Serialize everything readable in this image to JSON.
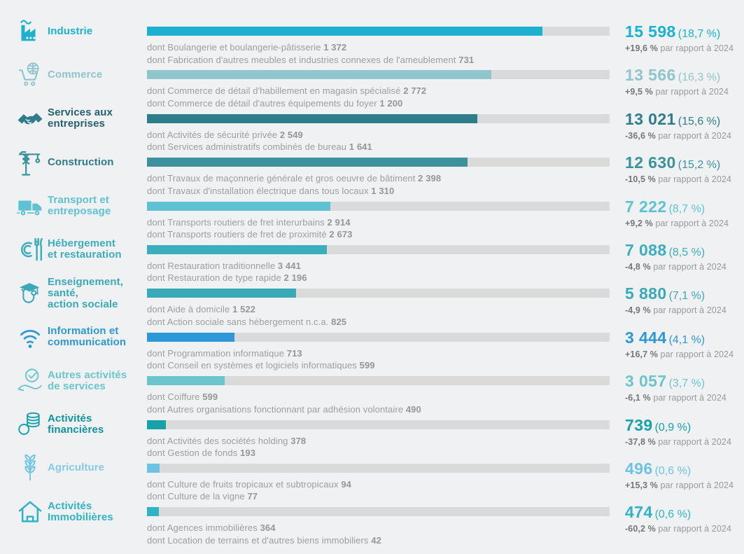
{
  "chart_data": {
    "type": "bar",
    "title": "",
    "orientation": "horizontal",
    "comparison_base": "par rapport à 2024",
    "bar_track_total": 18243,
    "categories": [
      "Industrie",
      "Commerce",
      "Services aux entreprises",
      "Construction",
      "Transport et entreposage",
      "Hébergement et restauration",
      "Enseignement, santé, action sociale",
      "Information et communication",
      "Autres activités de services",
      "Activités financières",
      "Agriculture",
      "Activités Immobilières"
    ],
    "values": [
      15598,
      13566,
      13021,
      12630,
      7222,
      7088,
      5880,
      3444,
      3057,
      739,
      496,
      474
    ],
    "share_pct": [
      18.7,
      16.3,
      15.6,
      15.2,
      8.7,
      8.5,
      7.1,
      4.1,
      3.7,
      0.9,
      0.6,
      0.6
    ],
    "change_pct_vs_2024": [
      19.6,
      9.5,
      -36.6,
      -10.5,
      9.2,
      -4.8,
      -4.9,
      16.7,
      -6.1,
      -37.8,
      15.3,
      -60.2
    ],
    "sub_items": [
      [
        {
          "label": "Boulangerie et boulangerie-pâtisserie",
          "value": 1372
        },
        {
          "label": "Fabrication d'autres meubles et industries connexes de l'ameublement",
          "value": 731
        }
      ],
      [
        {
          "label": "Commerce de détail d'habillement en magasin spécialisé",
          "value": 2772
        },
        {
          "label": "Commerce de détail d'autres équipements du foyer",
          "value": 1200
        }
      ],
      [
        {
          "label": "Activités de sécurité privée",
          "value": 2549
        },
        {
          "label": "Services administratifs combinés de bureau",
          "value": 1641
        }
      ],
      [
        {
          "label": "Travaux de maçonnerie générale et gros oeuvre de bâtiment",
          "value": 2398
        },
        {
          "label": "Travaux d'installation électrique dans tous locaux",
          "value": 1310
        }
      ],
      [
        {
          "label": "Transports routiers de fret interurbains",
          "value": 2914
        },
        {
          "label": "Transports routiers de fret de proximité",
          "value": 2673
        }
      ],
      [
        {
          "label": "Restauration traditionnelle",
          "value": 3441
        },
        {
          "label": "Restauration de type rapide",
          "value": 2196
        }
      ],
      [
        {
          "label": "Aide à domicile",
          "value": 1522
        },
        {
          "label": "Action sociale sans hébergement n.c.a.",
          "value": 825
        }
      ],
      [
        {
          "label": "Programmation informatique",
          "value": 713
        },
        {
          "label": "Conseil en systèmes et logiciels informatiques",
          "value": 599
        }
      ],
      [
        {
          "label": "Coiffure",
          "value": 599
        },
        {
          "label": "Autres organisations fonctionnant par adhésion volontaire",
          "value": 490
        }
      ],
      [
        {
          "label": "Activités des sociétés holding",
          "value": 378
        },
        {
          "label": "Gestion de fonds",
          "value": 193
        }
      ],
      [
        {
          "label": "Culture de fruits tropicaux et subtropicaux",
          "value": 94
        },
        {
          "label": "Culture de la vigne",
          "value": 77
        }
      ],
      [
        {
          "label": "Agences immobilières",
          "value": 364
        },
        {
          "label": "Location de terrains et d'autres biens immobiliers",
          "value": 42
        }
      ]
    ]
  },
  "colors": {
    "background": "#f0f1f2",
    "track": "#d9dad9",
    "change_bold": "#75767a",
    "change_text": "#97999c",
    "detail_text": "#9b9da0"
  },
  "rows": [
    {
      "label": "Industrie",
      "icon": "factory-icon",
      "color": "#1bb1cf",
      "label_color": "#1bb1cf",
      "value": "15 598",
      "value_num": 15598,
      "share": "(18,7 %)",
      "change": "+19,6 %",
      "change_suffix": "par rapport à 2024",
      "details": [
        {
          "text": "dont Boulangerie et boulangerie-pâtisserie",
          "value": "1 372"
        },
        {
          "text": "dont Fabrication d'autres meubles et industries connexes de l'ameublement",
          "value": "731"
        }
      ]
    },
    {
      "label": "Commerce",
      "icon": "shopping-cart-globe-icon",
      "color": "#8fc5cc",
      "label_color": "#8fc5cc",
      "value": "13 566",
      "value_num": 13566,
      "share": "(16,3 %)",
      "change": "+9,5 %",
      "change_suffix": "par rapport à 2024",
      "details": [
        {
          "text": "dont Commerce de détail d'habillement en magasin spécialisé",
          "value": "2 772"
        },
        {
          "text": "dont Commerce de détail d'autres équipements du foyer",
          "value": "1 200"
        }
      ]
    },
    {
      "label": "Services aux\nentreprises",
      "icon": "handshake-icon",
      "color": "#2e7d8b",
      "label_color": "#24616f",
      "value": "13 021",
      "value_num": 13021,
      "share": "(15,6 %)",
      "change": "-36,6 %",
      "change_suffix": "par rapport à 2024",
      "details": [
        {
          "text": "dont Activités de sécurité privée",
          "value": "2 549"
        },
        {
          "text": "dont Services administratifs combinés de bureau",
          "value": "1 641"
        }
      ]
    },
    {
      "label": "Construction",
      "icon": "crane-icon",
      "color": "#3b929c",
      "label_color": "#2e7b8a",
      "value": "12 630",
      "value_num": 12630,
      "share": "(15,2 %)",
      "change": "-10,5 %",
      "change_suffix": "par rapport à 2024",
      "details": [
        {
          "text": "dont Travaux de maçonnerie générale et gros oeuvre de bâtiment",
          "value": "2 398"
        },
        {
          "text": "dont Travaux d'installation électrique dans tous locaux",
          "value": "1 310"
        }
      ]
    },
    {
      "label": "Transport et\nentreposage",
      "icon": "truck-icon",
      "color": "#5fc2d3",
      "label_color": "#5fc2d3",
      "value": "7 222",
      "value_num": 7222,
      "share": "(8,7 %)",
      "change": "+9,2 %",
      "change_suffix": "par rapport à 2024",
      "details": [
        {
          "text": "dont Transports routiers de fret interurbains",
          "value": "2 914"
        },
        {
          "text": "dont Transports routiers de fret de proximité",
          "value": "2 673"
        }
      ]
    },
    {
      "label": "Hébergement\net restauration",
      "icon": "restaurant-icon",
      "color": "#3cadbc",
      "label_color": "#3cadbc",
      "value": "7 088",
      "value_num": 7088,
      "share": "(8,5 %)",
      "change": "-4,8 %",
      "change_suffix": "par rapport à 2024",
      "details": [
        {
          "text": "dont Restauration traditionnelle",
          "value": "3 441"
        },
        {
          "text": "dont Restauration de type rapide",
          "value": "2 196"
        }
      ]
    },
    {
      "label": "Enseignement,\nsanté,\naction sociale",
      "icon": "education-health-icon",
      "color": "#3aa9b8",
      "label_color": "#3aa9b8",
      "value": "5 880",
      "value_num": 5880,
      "share": "(7,1 %)",
      "change": "-4,9 %",
      "change_suffix": "par rapport à 2024",
      "details": [
        {
          "text": "dont Aide à domicile",
          "value": "1 522"
        },
        {
          "text": "dont Action sociale sans hébergement n.c.a.",
          "value": "825"
        }
      ]
    },
    {
      "label": "Information et\ncommunication",
      "icon": "wifi-icon",
      "color": "#2d97d7",
      "label_color": "#2d97d7",
      "value": "3 444",
      "value_num": 3444,
      "share": "(4,1 %)",
      "change": "+16,7 %",
      "change_suffix": "par rapport à 2024",
      "details": [
        {
          "text": "dont Programmation informatique",
          "value": "713"
        },
        {
          "text": "dont Conseil en systèmes et logiciels informatiques",
          "value": "599"
        }
      ]
    },
    {
      "label": "Autres activités\nde services",
      "icon": "hand-check-icon",
      "color": "#6bc6cc",
      "label_color": "#6bc6cc",
      "value": "3 057",
      "value_num": 3057,
      "share": "(3,7 %)",
      "change": "-6,1 %",
      "change_suffix": "par rapport à 2024",
      "details": [
        {
          "text": "dont Coiffure",
          "value": "599"
        },
        {
          "text": "dont Autres organisations fonctionnant par adhésion volontaire",
          "value": "490"
        }
      ]
    },
    {
      "label": "Activités\nfinancières",
      "icon": "coins-icon",
      "color": "#16a2a8",
      "label_color": "#0f939c",
      "value": "739",
      "value_num": 739,
      "share": "(0,9 %)",
      "change": "-37,8 %",
      "change_suffix": "par rapport à 2024",
      "details": [
        {
          "text": "dont Activités des sociétés holding",
          "value": "378"
        },
        {
          "text": "dont Gestion de fonds",
          "value": "193"
        }
      ]
    },
    {
      "label": "Agriculture",
      "icon": "wheat-icon",
      "color": "#6dc3e3",
      "label_color": "#85c9e6",
      "value": "496",
      "value_num": 496,
      "share": "(0,6 %)",
      "change": "+15,3 %",
      "change_suffix": "par rapport à 2024",
      "details": [
        {
          "text": "dont Culture de fruits tropicaux et subtropicaux",
          "value": "94"
        },
        {
          "text": "dont Culture de la vigne",
          "value": "77"
        }
      ]
    },
    {
      "label": "Activités\nImmobilières",
      "icon": "house-icon",
      "color": "#2fb4c6",
      "label_color": "#2fb4c6",
      "value": "474",
      "value_num": 474,
      "share": "(0,6 %)",
      "change": "-60,2 %",
      "change_suffix": "par rapport à 2024",
      "details": [
        {
          "text": "dont Agences immobilières",
          "value": "364"
        },
        {
          "text": "dont Location de terrains et d'autres biens immobiliers",
          "value": "42"
        }
      ]
    }
  ]
}
